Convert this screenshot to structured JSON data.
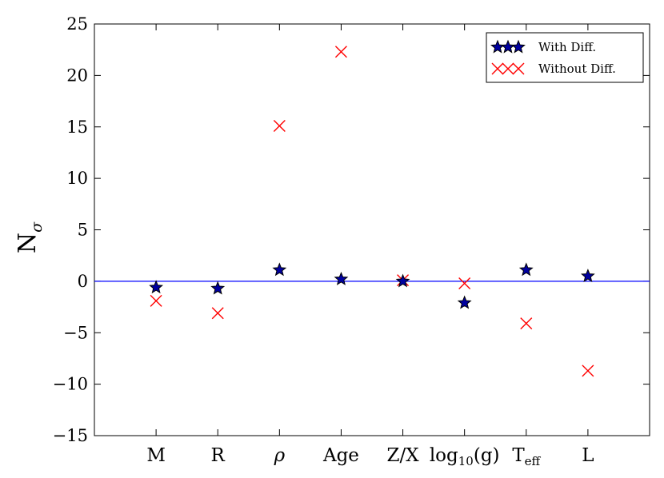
{
  "chart_data": {
    "type": "scatter",
    "title": "",
    "xlabel": "",
    "ylabel": "N",
    "ylabel_subscript": "σ",
    "ylim": [
      -15,
      25
    ],
    "yticks": [
      -15,
      -10,
      -5,
      0,
      5,
      10,
      15,
      20,
      25
    ],
    "ytick_labels": [
      "−15",
      "−10",
      "−5",
      "0",
      "5",
      "10",
      "15",
      "20",
      "25"
    ],
    "categories": [
      {
        "label": "M"
      },
      {
        "label": "R"
      },
      {
        "label": "ρ",
        "italic": true
      },
      {
        "label": "Age"
      },
      {
        "label": "Z/X"
      },
      {
        "label": "log",
        "sub": "10",
        "suffix": "(g)"
      },
      {
        "label": "T",
        "sub": "eff"
      },
      {
        "label": "L"
      }
    ],
    "series": [
      {
        "name": "With Diff.",
        "marker": "star",
        "color": "#0000a0",
        "values": [
          -0.6,
          -0.7,
          1.1,
          0.2,
          0.0,
          -2.1,
          1.1,
          0.5
        ]
      },
      {
        "name": "Without Diff.",
        "marker": "x",
        "color": "#ff0000",
        "values": [
          -1.9,
          -3.1,
          15.1,
          22.3,
          0.1,
          -0.2,
          -4.1,
          -8.7
        ]
      }
    ],
    "reference_line": {
      "y": 0,
      "color": "#0000ff"
    },
    "legend_position": "top-right",
    "grid": false
  }
}
